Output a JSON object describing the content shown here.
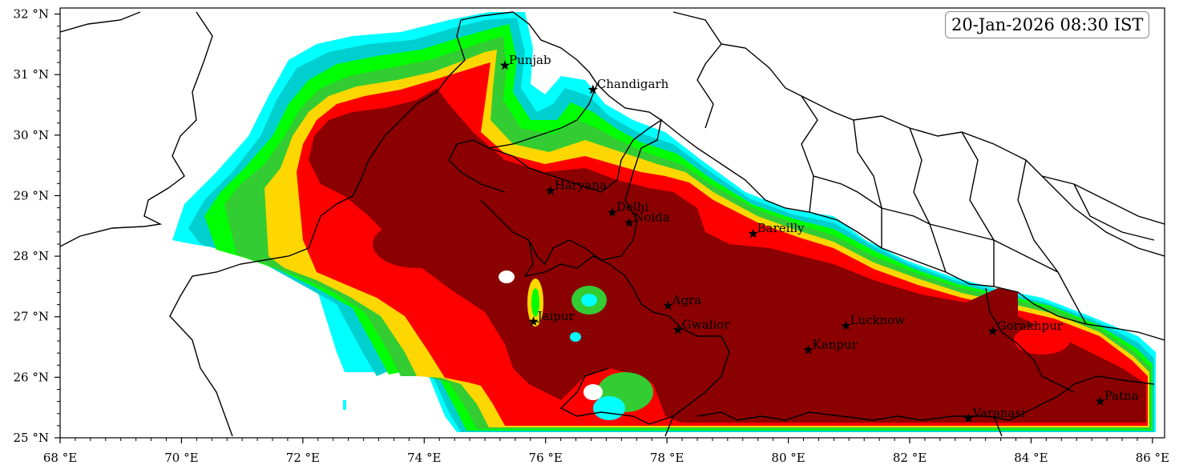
{
  "map": {
    "timestamp": "20-Jan-2026 08:30 IST",
    "lon_range": [
      68,
      86.2
    ],
    "lat_range": [
      25,
      32.1
    ],
    "x_ticks": [
      {
        "value": 68,
        "label": "68 °E"
      },
      {
        "value": 70,
        "label": "70 °E"
      },
      {
        "value": 72,
        "label": "72 °E"
      },
      {
        "value": 74,
        "label": "74 °E"
      },
      {
        "value": 76,
        "label": "76 °E"
      },
      {
        "value": 78,
        "label": "78 °E"
      },
      {
        "value": 80,
        "label": "80 °E"
      },
      {
        "value": 82,
        "label": "82 °E"
      },
      {
        "value": 84,
        "label": "84 °E"
      },
      {
        "value": 86,
        "label": "86 °E"
      }
    ],
    "y_ticks": [
      {
        "value": 32,
        "label": "32 °N"
      },
      {
        "value": 31,
        "label": "31 °N"
      },
      {
        "value": 30,
        "label": "30 °N"
      },
      {
        "value": 29,
        "label": "29 °N"
      },
      {
        "value": 28,
        "label": "28 °N"
      },
      {
        "value": 27,
        "label": "27 °N"
      },
      {
        "value": 26,
        "label": "26 °N"
      },
      {
        "value": 25,
        "label": "25 °N"
      }
    ],
    "level_colors": [
      "#00ffff",
      "#00cfcf",
      "#00ff00",
      "#33cc33",
      "#ffd700",
      "#ff0000",
      "#8b0000"
    ],
    "cities": [
      {
        "name": "Punjab",
        "lon": 75.33,
        "lat": 31.15
      },
      {
        "name": "Chandigarh",
        "lon": 76.78,
        "lat": 30.75
      },
      {
        "name": "Haryana",
        "lon": 76.08,
        "lat": 29.08
      },
      {
        "name": "Delhi",
        "lon": 77.1,
        "lat": 28.72
      },
      {
        "name": "Noida",
        "lon": 77.38,
        "lat": 28.55
      },
      {
        "name": "Bareilly",
        "lon": 79.42,
        "lat": 28.37
      },
      {
        "name": "Agra",
        "lon": 78.02,
        "lat": 27.18
      },
      {
        "name": "Jaipur",
        "lon": 75.8,
        "lat": 26.92
      },
      {
        "name": "Gwalior",
        "lon": 78.18,
        "lat": 26.78
      },
      {
        "name": "Lucknow",
        "lon": 80.95,
        "lat": 26.85
      },
      {
        "name": "Kanpur",
        "lon": 80.33,
        "lat": 26.45
      },
      {
        "name": "Gorakhpur",
        "lon": 83.37,
        "lat": 26.76
      },
      {
        "name": "Patna",
        "lon": 85.14,
        "lat": 25.6
      },
      {
        "name": "Varanasi",
        "lon": 82.97,
        "lat": 25.32
      }
    ]
  }
}
